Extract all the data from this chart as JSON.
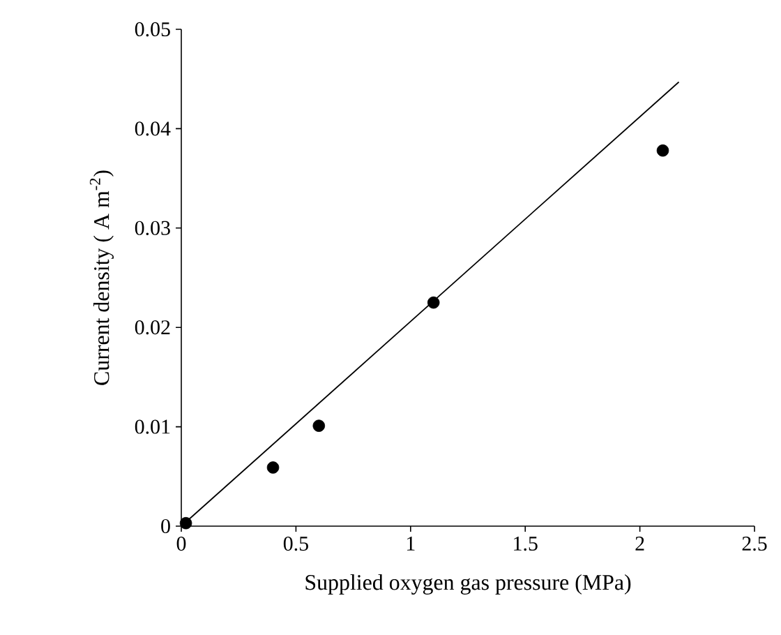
{
  "chart_data": {
    "type": "scatter",
    "xlabel": "Supplied oxygen gas pressure (MPa)",
    "ylabel": "Current density ( A m$^{-2}$)",
    "xlim": [
      0,
      2.5
    ],
    "ylim": [
      0,
      0.05
    ],
    "xticks": [
      0,
      0.5,
      1,
      1.5,
      2,
      2.5
    ],
    "yticks": [
      0,
      0.01,
      0.02,
      0.03,
      0.04,
      0.05
    ],
    "grid": false,
    "marker": "circle",
    "series": [
      {
        "color": "#000000",
        "x": [
          0.02,
          0.4,
          0.6,
          1.1,
          2.1
        ],
        "values": [
          0.0003,
          0.0059,
          0.0101,
          0.0225,
          0.0378
        ]
      },
      {
        "type": "line",
        "marker": "none",
        "color": "#000000",
        "x": [
          0,
          2.17
        ],
        "values": [
          0,
          0.0447
        ]
      }
    ]
  }
}
